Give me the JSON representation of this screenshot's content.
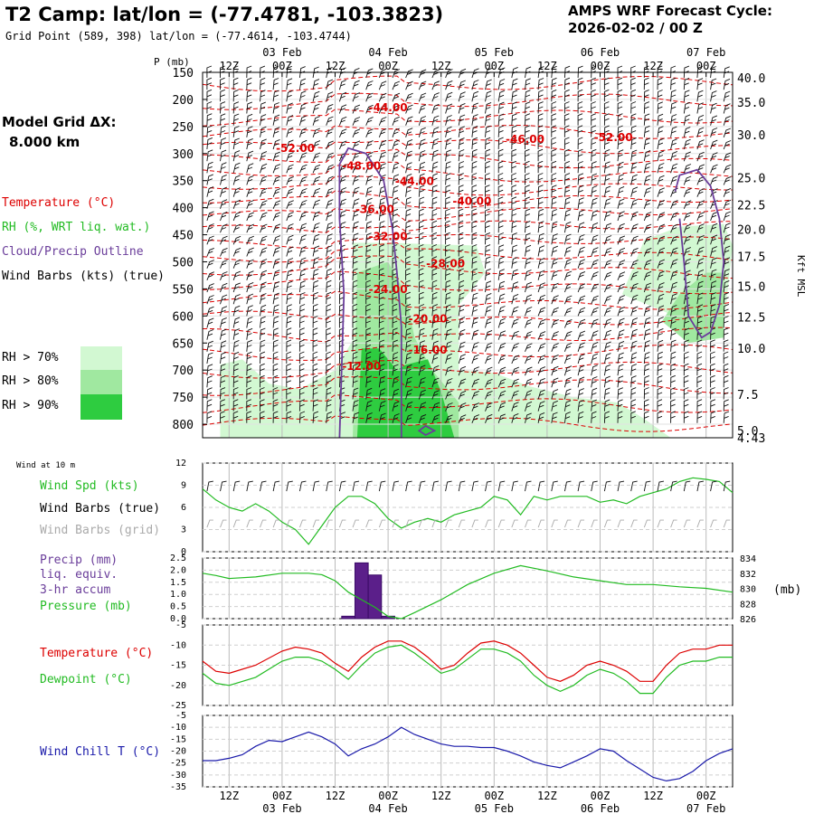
{
  "header": {
    "title": "T2 Camp:  lat/lon = (-77.4781, -103.3823)",
    "grid_point": "Grid Point (589, 398) lat/lon = (-77.4614, -103.4744)",
    "cycle_line1": "AMPS WRF Forecast Cycle:",
    "cycle_line2": "2026-02-02 / 00  Z"
  },
  "sidebar": {
    "model_grid_label": "Model Grid ΔX:",
    "model_grid_value": "8.000 km",
    "legend_temperature": "Temperature (°C)",
    "legend_rh": "RH (%, WRT liq. wat.)",
    "legend_cloud": "Cloud/Precip Outline",
    "legend_wind": "Wind Barbs (kts) (true)",
    "rh_levels": [
      "RH > 70%",
      "RH > 80%",
      "RH > 90%"
    ],
    "rh_colors": [
      "#d2f8d2",
      "#a0e8a0",
      "#2ecc40"
    ]
  },
  "colors": {
    "temperature": "#dd0000",
    "dewpoint": "#22bb22",
    "cloud": "#6a3d9a",
    "windchill": "#1a1aaa",
    "precip": "#5b1f8a",
    "barb_grid": "#aaaaaa",
    "wind_speed": "#22bb22",
    "grid": "#bbbbbb"
  },
  "chart_data": [
    {
      "id": "cross_section",
      "type": "contour",
      "ylabel_left": "P (mb)",
      "ylabel_right": "Kft MSL",
      "pressure_ticks": [
        150,
        200,
        250,
        300,
        350,
        400,
        450,
        500,
        550,
        600,
        650,
        700,
        750,
        800
      ],
      "kft_ticks": [
        {
          "label": "40.0",
          "p": 160
        },
        {
          "label": "35.0",
          "p": 205
        },
        {
          "label": "30.0",
          "p": 265
        },
        {
          "label": "25.0",
          "p": 345
        },
        {
          "label": "22.5",
          "p": 395
        },
        {
          "label": "20.0",
          "p": 440
        },
        {
          "label": "17.5",
          "p": 490
        },
        {
          "label": "15.0",
          "p": 545
        },
        {
          "label": "12.5",
          "p": 602
        },
        {
          "label": "10.0",
          "p": 660
        },
        {
          "label": "7.5",
          "p": 745
        },
        {
          "label": "5.0",
          "p": 812
        },
        {
          "label": "4.43",
          "p": 825
        }
      ],
      "p_range": [
        150,
        825
      ],
      "time_range_hours": [
        0,
        120
      ],
      "time_ticks_top": [
        {
          "h": 6,
          "label": "12Z"
        },
        {
          "h": 18,
          "label": "00Z"
        },
        {
          "h": 30,
          "label": "12Z"
        },
        {
          "h": 42,
          "label": "00Z"
        },
        {
          "h": 54,
          "label": "12Z"
        },
        {
          "h": 66,
          "label": "00Z"
        },
        {
          "h": 78,
          "label": "12Z"
        },
        {
          "h": 90,
          "label": "00Z"
        },
        {
          "h": 102,
          "label": "12Z"
        },
        {
          "h": 114,
          "label": "00Z"
        }
      ],
      "date_labels_top": [
        {
          "h": 18,
          "label": "03 Feb"
        },
        {
          "h": 42,
          "label": "04 Feb"
        },
        {
          "h": 66,
          "label": "05 Feb"
        },
        {
          "h": 90,
          "label": "06 Feb"
        },
        {
          "h": 114,
          "label": "07 Feb"
        }
      ],
      "temperature_labels": [
        {
          "label": "-44.00",
          "h": 42,
          "p": 222
        },
        {
          "label": "-52.00",
          "h": 21,
          "p": 297
        },
        {
          "label": "-48.00",
          "h": 36,
          "p": 330
        },
        {
          "label": "-46.00",
          "h": 73,
          "p": 280
        },
        {
          "label": "-52.00",
          "h": 93,
          "p": 277
        },
        {
          "label": "-44.00",
          "h": 48,
          "p": 358
        },
        {
          "label": "-40.00",
          "h": 61,
          "p": 395
        },
        {
          "label": "-36.00",
          "h": 39,
          "p": 410
        },
        {
          "label": "-32.00",
          "h": 42,
          "p": 460
        },
        {
          "label": "-28.00",
          "h": 55,
          "p": 510
        },
        {
          "label": "-24.00",
          "h": 42,
          "p": 558
        },
        {
          "label": "-20.00",
          "h": 51,
          "p": 612
        },
        {
          "label": "-16.00",
          "h": 51,
          "p": 670
        },
        {
          "label": "-12.00",
          "h": 36,
          "p": 700
        }
      ],
      "rh_fields": [
        {
          "level": 70,
          "points": [
            [
              4,
              825
            ],
            [
              4,
              690
            ],
            [
              9,
              680
            ],
            [
              15,
              725
            ],
            [
              22,
              735
            ],
            [
              30,
              700
            ],
            [
              34,
              645
            ],
            [
              34,
              465
            ],
            [
              42,
              465
            ],
            [
              62,
              470
            ],
            [
              64,
              520
            ],
            [
              58,
              580
            ],
            [
              58,
              700
            ],
            [
              66,
              705
            ],
            [
              74,
              730
            ],
            [
              84,
              750
            ],
            [
              94,
              760
            ],
            [
              100,
              790
            ],
            [
              106,
              825
            ]
          ]
        },
        {
          "level": 70,
          "points": [
            [
              95,
              560
            ],
            [
              100,
              460
            ],
            [
              108,
              435
            ],
            [
              118,
              430
            ],
            [
              120,
              470
            ],
            [
              118,
              620
            ],
            [
              112,
              620
            ],
            [
              104,
              590
            ]
          ]
        },
        {
          "level": 80,
          "points": [
            [
              34,
              825
            ],
            [
              35,
              520
            ],
            [
              42,
              500
            ],
            [
              46,
              560
            ],
            [
              48,
              640
            ],
            [
              52,
              700
            ],
            [
              58,
              760
            ],
            [
              58,
              825
            ]
          ]
        },
        {
          "level": 80,
          "points": [
            [
              104,
              610
            ],
            [
              108,
              560
            ],
            [
              114,
              520
            ],
            [
              118,
              520
            ],
            [
              118,
              640
            ],
            [
              110,
              650
            ]
          ]
        },
        {
          "level": 90,
          "points": [
            [
              35,
              825
            ],
            [
              36,
              660
            ],
            [
              40,
              660
            ],
            [
              44,
              700
            ],
            [
              46,
              690
            ],
            [
              51,
              680
            ],
            [
              54,
              740
            ],
            [
              57,
              825
            ]
          ]
        }
      ],
      "cloud_outlines": [
        {
          "points": [
            [
              31,
              825
            ],
            [
              32,
              560
            ],
            [
              31,
              420
            ],
            [
              31,
              320
            ],
            [
              33,
              290
            ],
            [
              37,
              300
            ],
            [
              41,
              350
            ],
            [
              43,
              440
            ],
            [
              44,
              520
            ],
            [
              45,
              620
            ],
            [
              45,
              825
            ]
          ]
        },
        {
          "points": [
            [
              107,
              370
            ],
            [
              108,
              340
            ],
            [
              112,
              330
            ],
            [
              115,
              360
            ],
            [
              117,
              420
            ],
            [
              118,
              500
            ],
            [
              117,
              580
            ],
            [
              115,
              630
            ],
            [
              113,
              640
            ],
            [
              110,
              600
            ],
            [
              109,
              500
            ],
            [
              108,
              420
            ]
          ]
        }
      ]
    },
    {
      "id": "wind10m",
      "type": "line",
      "title": "Wind at 10 m",
      "labels": [
        "Wind Spd (kts)",
        "Wind Barbs (true)",
        "Wind Barbs (grid)"
      ],
      "ylim": [
        0,
        12
      ],
      "yticks": [
        0,
        3,
        6,
        9,
        12
      ],
      "x": [
        0,
        3,
        6,
        9,
        12,
        15,
        18,
        21,
        24,
        27,
        30,
        33,
        36,
        39,
        42,
        45,
        48,
        51,
        54,
        57,
        60,
        63,
        66,
        69,
        72,
        75,
        78,
        81,
        84,
        87,
        90,
        93,
        96,
        99,
        102,
        105,
        108,
        111,
        114,
        117,
        120
      ],
      "values": [
        8.5,
        7.0,
        6.0,
        5.5,
        6.5,
        5.5,
        4.0,
        3.0,
        1.0,
        3.5,
        6.0,
        7.5,
        7.5,
        6.5,
        4.5,
        3.2,
        4.0,
        4.5,
        4.0,
        5.0,
        5.5,
        6.0,
        7.5,
        7.0,
        5.0,
        7.5,
        7.0,
        7.5,
        7.5,
        7.5,
        6.7,
        7.0,
        6.5,
        7.5,
        8.0,
        8.5,
        9.5,
        10.0,
        9.8,
        9.5,
        8.0
      ]
    },
    {
      "id": "precip_pressure",
      "type": "bar+line",
      "labels": [
        "Precip (mm)",
        "liq. equiv.",
        "3-hr accum",
        "Pressure (mb)"
      ],
      "ylim_left": [
        0,
        2.5
      ],
      "yticks_left": [
        "0.0",
        "0.5",
        "1.0",
        "1.5",
        "2.0",
        "2.5"
      ],
      "ylim_right": [
        826,
        834
      ],
      "yticks_right": [
        "826",
        "828",
        "830",
        "832",
        "834"
      ],
      "ylabel_right": "(mb)",
      "precip_bars": [
        {
          "h": 33,
          "v": 0.1
        },
        {
          "h": 36,
          "v": 2.3
        },
        {
          "h": 39,
          "v": 1.8
        },
        {
          "h": 42,
          "v": 0.1
        }
      ],
      "pressure_x": [
        0,
        3,
        6,
        12,
        18,
        24,
        27,
        30,
        33,
        36,
        39,
        42,
        45,
        48,
        54,
        60,
        66,
        72,
        78,
        84,
        90,
        96,
        102,
        108,
        114,
        120
      ],
      "pressure_values": [
        832.0,
        831.7,
        831.3,
        831.5,
        832.0,
        832.0,
        831.8,
        831.0,
        829.5,
        828.5,
        827.5,
        826.3,
        826.0,
        826.8,
        828.5,
        830.5,
        832.0,
        833.0,
        832.3,
        831.5,
        831.0,
        830.5,
        830.5,
        830.2,
        830.0,
        829.5
      ]
    },
    {
      "id": "temp_dew",
      "type": "line",
      "labels": [
        "Temperature (°C)",
        "Dewpoint (°C)"
      ],
      "ylim": [
        -25,
        -5
      ],
      "yticks": [
        "-5",
        "-10",
        "-15",
        "-20",
        "-25"
      ],
      "x": [
        0,
        3,
        6,
        12,
        18,
        21,
        24,
        27,
        30,
        33,
        36,
        39,
        42,
        45,
        48,
        51,
        54,
        57,
        60,
        63,
        66,
        69,
        72,
        75,
        78,
        81,
        84,
        87,
        90,
        93,
        96,
        99,
        102,
        105,
        108,
        111,
        114,
        117,
        120
      ],
      "temperature": [
        -14,
        -16.5,
        -17,
        -15,
        -11.5,
        -10.5,
        -11,
        -12,
        -14.5,
        -16.5,
        -13,
        -10.5,
        -9,
        -9,
        -10.5,
        -13,
        -16,
        -15,
        -12,
        -9.5,
        -9,
        -10,
        -12,
        -15,
        -18,
        -19,
        -17.5,
        -15,
        -14,
        -15,
        -16.5,
        -19,
        -19,
        -15,
        -12,
        -11,
        -11,
        -10,
        -10
      ],
      "dewpoint": [
        -17,
        -19.5,
        -20,
        -18,
        -14,
        -13,
        -13,
        -14,
        -16,
        -18.5,
        -15,
        -12,
        -10.5,
        -10,
        -12,
        -14.5,
        -17,
        -16,
        -13.5,
        -11,
        -11,
        -12,
        -14,
        -17.5,
        -20,
        -21.5,
        -20,
        -17.5,
        -16,
        -17,
        -19,
        -22,
        -22,
        -18,
        -15,
        -14,
        -14,
        -13,
        -13
      ]
    },
    {
      "id": "windchill",
      "type": "line",
      "labels": [
        "Wind Chill T (°C)"
      ],
      "ylim": [
        -35,
        -5
      ],
      "yticks": [
        "-5",
        "-10",
        "-15",
        "-20",
        "-25",
        "-30",
        "-35"
      ],
      "x": [
        0,
        3,
        6,
        9,
        12,
        15,
        18,
        21,
        24,
        27,
        30,
        33,
        36,
        39,
        42,
        45,
        48,
        51,
        54,
        57,
        60,
        63,
        66,
        69,
        72,
        75,
        78,
        81,
        84,
        87,
        90,
        93,
        96,
        99,
        102,
        105,
        108,
        111,
        114,
        117,
        120
      ],
      "values": [
        -24,
        -24,
        -23,
        -21.5,
        -18,
        -15.5,
        -16,
        -14,
        -12,
        -14,
        -17,
        -22,
        -19,
        -17,
        -14,
        -10,
        -13,
        -15,
        -17,
        -18,
        -18,
        -18.5,
        -18.5,
        -20,
        -22,
        -24.5,
        -26,
        -27,
        -24.5,
        -22,
        -19,
        -20,
        -24,
        -27.5,
        -31,
        -32.5,
        -31.5,
        -28.5,
        -24,
        -21,
        -19
      ]
    }
  ],
  "bottom_axis": {
    "time_labels": [
      "12Z",
      "00Z",
      "12Z",
      "00Z",
      "12Z",
      "00Z",
      "12Z",
      "00Z",
      "12Z",
      "00Z"
    ],
    "date_labels": [
      "03 Feb",
      "04 Feb",
      "05 Feb",
      "06 Feb",
      "07 Feb"
    ]
  }
}
